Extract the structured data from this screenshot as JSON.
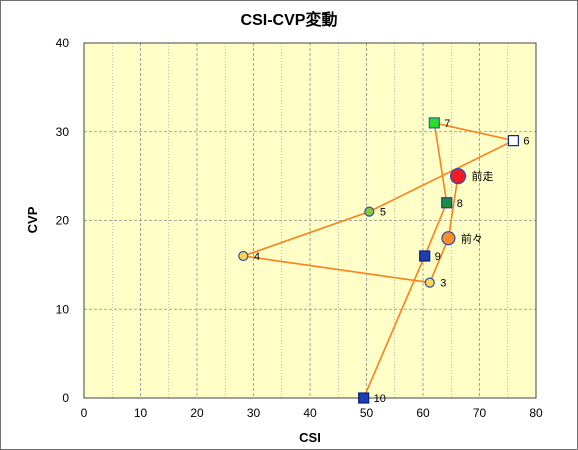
{
  "chart_data": {
    "type": "scatter",
    "title": "CSI-CVP変動",
    "xlabel": "CSI",
    "ylabel": "CVP",
    "xlim": [
      0,
      80
    ],
    "ylim": [
      0,
      40
    ],
    "xticks": [
      "0",
      "10",
      "20",
      "30",
      "40",
      "50",
      "60",
      "70",
      "80"
    ],
    "yticks": [
      "0",
      "10",
      "20",
      "30",
      "40"
    ],
    "grid": true,
    "colors": {
      "plot_bg": "#ffffc8",
      "grid": "#8c8c8c",
      "line": "#ff7f1e"
    },
    "path_order": [
      "10",
      "9",
      "8",
      "7",
      "6",
      "5",
      "4",
      "3",
      "前々",
      "前走"
    ],
    "points": [
      {
        "label": "10",
        "x": 49.5,
        "y": 0,
        "marker": "square",
        "fill": "#1e3cb4",
        "stroke": "#0a1e78"
      },
      {
        "label": "9",
        "x": 60.3,
        "y": 16,
        "marker": "square",
        "fill": "#1e3cb4",
        "stroke": "#0a1e78"
      },
      {
        "label": "8",
        "x": 64.2,
        "y": 22,
        "marker": "square",
        "fill": "#1e8c3c",
        "stroke": "#0a3cc8"
      },
      {
        "label": "7",
        "x": 62.0,
        "y": 31,
        "marker": "square",
        "fill": "#28dc28",
        "stroke": "#1e64b4"
      },
      {
        "label": "6",
        "x": 76.0,
        "y": 29,
        "marker": "square",
        "fill": "#ffffff",
        "stroke": "#0a28a0"
      },
      {
        "label": "5",
        "x": 50.5,
        "y": 21,
        "marker": "circle",
        "fill": "#8cc832",
        "stroke": "#2850b4"
      },
      {
        "label": "4",
        "x": 28.2,
        "y": 16,
        "marker": "circle",
        "fill": "#ffd250",
        "stroke": "#2850b4"
      },
      {
        "label": "3",
        "x": 61.2,
        "y": 13,
        "marker": "circle",
        "fill": "#ffd250",
        "stroke": "#2850b4"
      },
      {
        "label": "前々",
        "x": 64.5,
        "y": 18,
        "marker": "circle-lg",
        "fill": "#ff8c28",
        "stroke": "#2850b4"
      },
      {
        "label": "前走",
        "x": 66.2,
        "y": 25,
        "marker": "circle-xl",
        "fill": "#ee1c24",
        "stroke": "#2850b4"
      }
    ]
  }
}
